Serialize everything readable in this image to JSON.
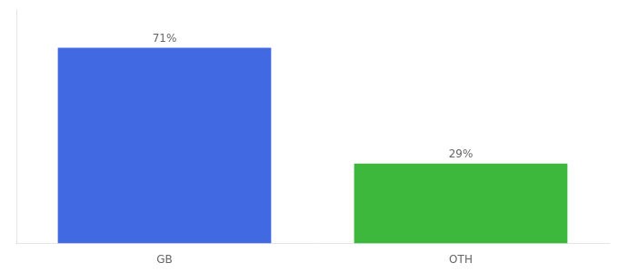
{
  "chart_data": {
    "type": "bar",
    "categories": [
      "GB",
      "OTH"
    ],
    "values": [
      71,
      29
    ],
    "value_labels": [
      "71%",
      "29%"
    ],
    "colors": [
      "#4169e1",
      "#3db83d"
    ],
    "ylim": [
      0,
      85
    ],
    "data_labels": true,
    "tick_labels": "x",
    "grid": false
  }
}
